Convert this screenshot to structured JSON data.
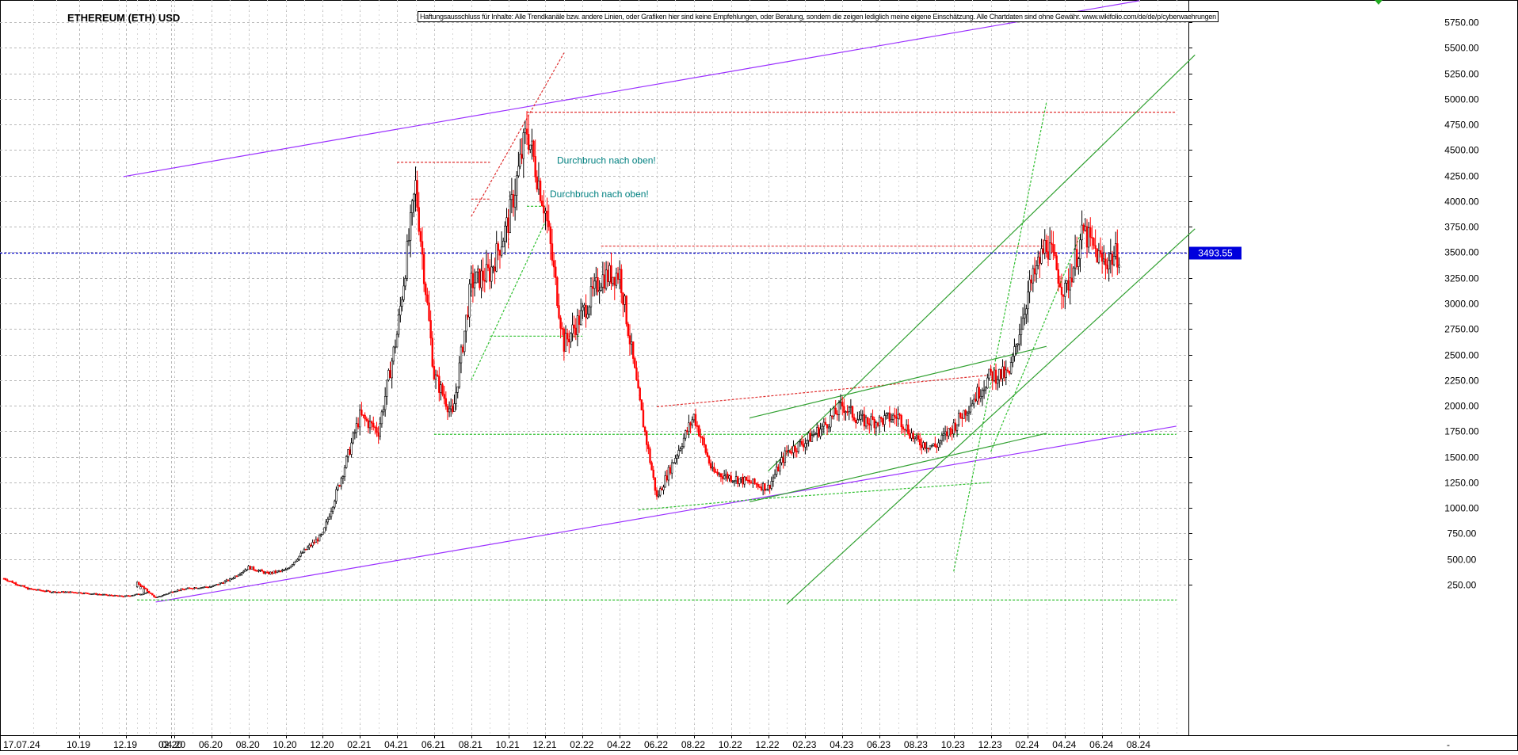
{
  "chart_data": {
    "type": "candlestick",
    "title": "ETHEREUM (ETH) USD",
    "disclaimer": "Haftungsausschluss für Inhalte: Alle Trendkanäle bzw. andere Linien, oder Grafiken hier sind keine Empfehlungen, oder Beratung, sondern die zeigen lediglich meine eigene Einschätzung. Alle Chartdaten sind ohne Gewähr.  www.wikifolio.com/de/de/p/cyberwaehrungen",
    "current_price_label": "3493.55",
    "current_price": 3493.55,
    "ylim": [
      50,
      6000
    ],
    "y_ticks": [
      250,
      500,
      750,
      1000,
      1250,
      1500,
      1750,
      2000,
      2250,
      2500,
      2750,
      3000,
      3250,
      3500,
      3750,
      4000,
      4250,
      4500,
      4750,
      5000,
      5250,
      5500,
      5750
    ],
    "y_tick_labels": [
      "250.00",
      "500.00",
      "750.00",
      "1000.00",
      "1250.00",
      "1500.00",
      "1750.00",
      "2000.00",
      "2250.00",
      "2500.00",
      "2750.00",
      "3000.00",
      "3250.00",
      "3500.00",
      "3750.00",
      "4000.00",
      "4250.00",
      "4500.00",
      "4750.00",
      "5000.00",
      "5250.00",
      "5500.00",
      "5750.00"
    ],
    "x_ticks": [
      "17.07.24",
      "10.19",
      "12.19",
      "02.20",
      "04.20",
      "06.20",
      "08.20",
      "10.20",
      "12.20",
      "02.21",
      "04.21",
      "06.21",
      "08.21",
      "10.21",
      "12.21",
      "02.22",
      "04.22",
      "06.22",
      "08.22",
      "10.22",
      "12.22",
      "02.23",
      "04.23",
      "06.23",
      "08.23",
      "10.23",
      "12.23",
      "02.24",
      "04.24",
      "06.24",
      "08.24",
      "-"
    ],
    "annotations": [
      {
        "text": "Durchbruch nach oben!",
        "x": "09.21",
        "y": 4400
      },
      {
        "text": "Durchbruch nach oben!",
        "x": "09.21",
        "y": 4070
      }
    ],
    "price_path": [
      [
        "07.19",
        310
      ],
      [
        "08.19",
        210
      ],
      [
        "09.19",
        180
      ],
      [
        "10.19",
        175
      ],
      [
        "11.19",
        155
      ],
      [
        "12.19",
        135
      ],
      [
        "01.20",
        170
      ],
      [
        "02.20",
        270
      ],
      [
        "03.20",
        120
      ],
      [
        "04.20",
        190
      ],
      [
        "05.20",
        220
      ],
      [
        "06.20",
        230
      ],
      [
        "07.20",
        300
      ],
      [
        "08.20",
        420
      ],
      [
        "09.20",
        360
      ],
      [
        "10.20",
        390
      ],
      [
        "11.20",
        580
      ],
      [
        "12.20",
        740
      ],
      [
        "01.21",
        1300
      ],
      [
        "02.21",
        1900
      ],
      [
        "03.21",
        1750
      ],
      [
        "04.21",
        2700
      ],
      [
        "05.21",
        4150
      ],
      [
        "06.21",
        2300
      ],
      [
        "07.21",
        1900
      ],
      [
        "08.21",
        3200
      ],
      [
        "09.21",
        3300
      ],
      [
        "10.21",
        3800
      ],
      [
        "11.21",
        4700
      ],
      [
        "12.21",
        3900
      ],
      [
        "01.22",
        2600
      ],
      [
        "02.22",
        2900
      ],
      [
        "03.22",
        3250
      ],
      [
        "04.22",
        3300
      ],
      [
        "05.22",
        2100
      ],
      [
        "06.22",
        1100
      ],
      [
        "07.22",
        1500
      ],
      [
        "08.22",
        1900
      ],
      [
        "09.22",
        1350
      ],
      [
        "10.22",
        1300
      ],
      [
        "11.22",
        1250
      ],
      [
        "12.22",
        1200
      ],
      [
        "01.23",
        1550
      ],
      [
        "02.23",
        1650
      ],
      [
        "03.23",
        1800
      ],
      [
        "04.23",
        2000
      ],
      [
        "05.23",
        1850
      ],
      [
        "06.23",
        1850
      ],
      [
        "07.23",
        1900
      ],
      [
        "08.23",
        1650
      ],
      [
        "09.23",
        1600
      ],
      [
        "10.23",
        1800
      ],
      [
        "11.23",
        2050
      ],
      [
        "12.23",
        2300
      ],
      [
        "01.24",
        2300
      ],
      [
        "02.24",
        3100
      ],
      [
        "03.24",
        3600
      ],
      [
        "04.24",
        3100
      ],
      [
        "05.24",
        3700
      ],
      [
        "06.24",
        3400
      ],
      [
        "07.24",
        3493.55
      ]
    ],
    "trend_lines": [
      {
        "color": "#9b30ff",
        "style": "solid",
        "from": [
          "12.19",
          4240
        ],
        "to": [
          "08.24",
          5960
        ]
      },
      {
        "color": "#9b30ff",
        "style": "solid",
        "from": [
          "03.20",
          80
        ],
        "to": [
          "10.24",
          1800
        ]
      },
      {
        "color": "#e03030",
        "style": "dotted",
        "from": [
          "11.21",
          4870
        ],
        "to": [
          "10.24",
          4870
        ]
      },
      {
        "color": "#e03030",
        "style": "dotted",
        "from": [
          "04.21",
          4380
        ],
        "to": [
          "09.21",
          4380
        ]
      },
      {
        "color": "#e03030",
        "style": "dotted",
        "from": [
          "08.21",
          4020
        ],
        "to": [
          "09.21",
          4020
        ]
      },
      {
        "color": "#e03030",
        "style": "dotted",
        "from": [
          "03.22",
          3560
        ],
        "to": [
          "03.24",
          3560
        ]
      },
      {
        "color": "#e03030",
        "style": "dotted",
        "from": [
          "06.22",
          1990
        ],
        "to": [
          "12.23",
          2300
        ]
      },
      {
        "color": "#e03030",
        "style": "dotted",
        "from": [
          "08.21",
          3850
        ],
        "to": [
          "01.22",
          5450
        ]
      },
      {
        "color": "#30c030",
        "style": "dotted",
        "from": [
          "06.21",
          1720
        ],
        "to": [
          "10.24",
          1720
        ]
      },
      {
        "color": "#30c030",
        "style": "dotted",
        "from": [
          "09.21",
          2680
        ],
        "to": [
          "02.22",
          2680
        ]
      },
      {
        "color": "#30c030",
        "style": "dotted",
        "from": [
          "11.21",
          3950
        ],
        "to": [
          "12.21",
          3950
        ]
      },
      {
        "color": "#30c030",
        "style": "dotted",
        "from": [
          "08.21",
          2250
        ],
        "to": [
          "12.21",
          3800
        ]
      },
      {
        "color": "#30c030",
        "style": "dotted",
        "from": [
          "05.22",
          980
        ],
        "to": [
          "11.22",
          1080
        ]
      },
      {
        "color": "#30c030",
        "style": "dotted",
        "from": [
          "11.22",
          1080
        ],
        "to": [
          "12.23",
          1250
        ]
      },
      {
        "color": "#30c030",
        "style": "dotted",
        "from": [
          "10.23",
          380
        ],
        "to": [
          "03.24",
          4970
        ]
      },
      {
        "color": "#30c030",
        "style": "dotted",
        "from": [
          "12.23",
          1550
        ],
        "to": [
          "05.24",
          3750
        ]
      },
      {
        "color": "#30c030",
        "style": "dotted",
        "from": [
          "02.20",
          100
        ],
        "to": [
          "10.24",
          100
        ]
      },
      {
        "color": "#30a030",
        "style": "solid",
        "from": [
          "11.22",
          1880
        ],
        "to": [
          "03.24",
          2580
        ]
      },
      {
        "color": "#30a030",
        "style": "solid",
        "from": [
          "11.22",
          1060
        ],
        "to": [
          "03.24",
          1730
        ]
      },
      {
        "color": "#30a030",
        "style": "solid",
        "from": [
          "12.22",
          1360
        ],
        "to": [
          "11.24",
          5430
        ]
      },
      {
        "color": "#30a030",
        "style": "solid",
        "from": [
          "01.23",
          60
        ],
        "to": [
          "11.24",
          3730
        ]
      }
    ]
  }
}
